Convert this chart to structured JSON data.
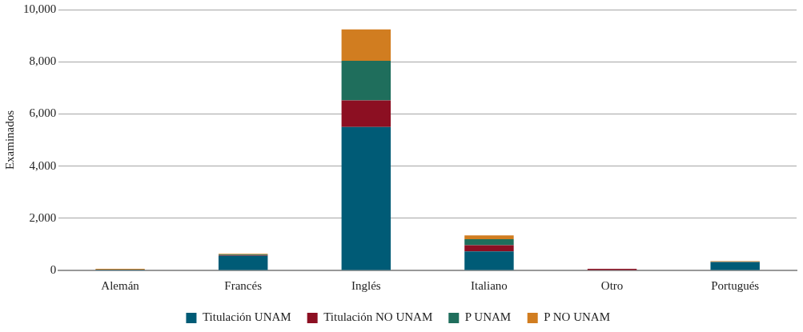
{
  "chart_data": {
    "type": "bar",
    "stacked": true,
    "ylabel": "Examinados",
    "categories": [
      "Alemán",
      "Francés",
      "Inglés",
      "Italiano",
      "Otro",
      "Portugués"
    ],
    "series": [
      {
        "name": "Titulación UNAM",
        "color": "#005b76",
        "values": [
          30,
          560,
          5500,
          730,
          0,
          320
        ]
      },
      {
        "name": "Titulación NO UNAM",
        "color": "#8c0f22",
        "values": [
          0,
          20,
          1020,
          235,
          60,
          0
        ]
      },
      {
        "name": "P UNAM",
        "color": "#1f6e5c",
        "values": [
          0,
          25,
          1520,
          235,
          0,
          0
        ]
      },
      {
        "name": "P NO UNAM",
        "color": "#d17d20",
        "values": [
          30,
          30,
          1200,
          145,
          0,
          30
        ]
      }
    ],
    "ylim": [
      0,
      10000
    ],
    "yticks": [
      {
        "value": 0,
        "label": "0"
      },
      {
        "value": 2000,
        "label": "2,000"
      },
      {
        "value": 4000,
        "label": "4,000"
      },
      {
        "value": 6000,
        "label": "6,000"
      },
      {
        "value": 8000,
        "label": "8,000"
      },
      {
        "value": 10000,
        "label": "10,000"
      }
    ],
    "grid": "y",
    "legend": "bottom"
  }
}
